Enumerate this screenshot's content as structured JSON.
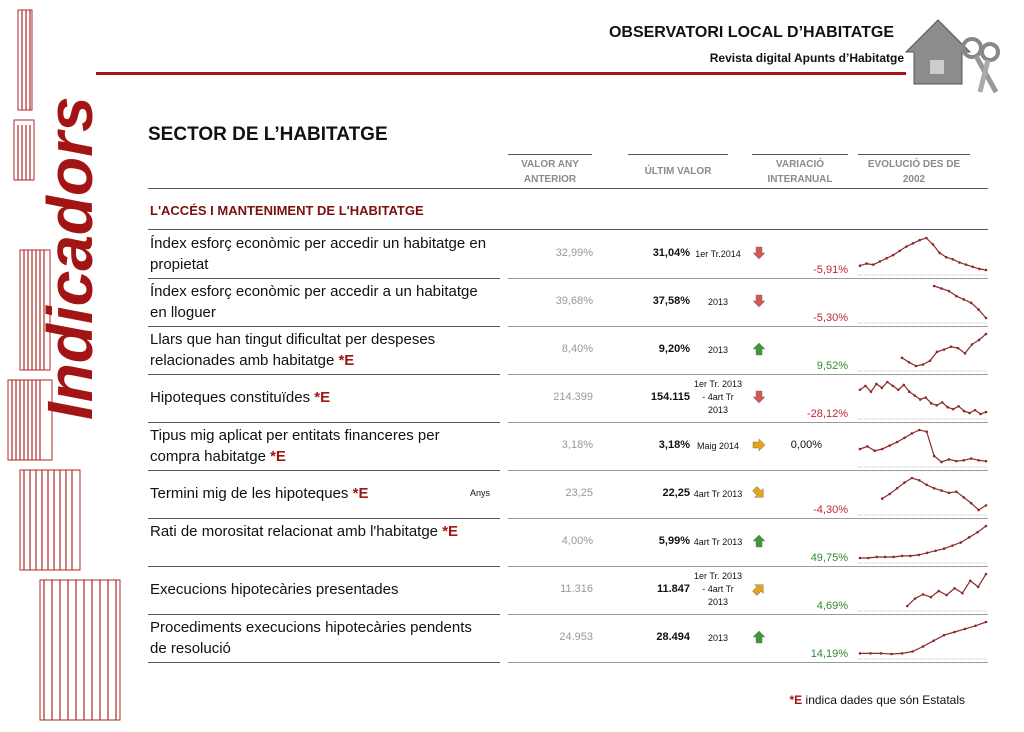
{
  "header": {
    "title": "OBSERVATORI LOCAL D’HABITATGE",
    "subtitle": "Revista digital Apunts d’Habitatge",
    "side_label": "Indicadors"
  },
  "section_title": "SECTOR DE L’HABITATGE",
  "columns": [
    "VALOR ANY ANTERIOR",
    "ÚLTIM VALOR",
    "VARIACIÓ INTERANUAL",
    "EVOLUCIÓ DES DE 2002"
  ],
  "group_title": "L'ACCÉS I MANTENIMENT DE L'HABITATGE",
  "rows": [
    {
      "label": "Índex esforç econòmic per accedir un habitatge en propietat",
      "prior": "32,99%",
      "last": "31,04%",
      "period": "1er Tr.2014",
      "trend": "down",
      "trend_color": "#d9534f",
      "variation": "-5,91%",
      "variation_color": "#c0262c",
      "spark": [
        20,
        22,
        21,
        24,
        27,
        30,
        34,
        38,
        41,
        44,
        46,
        40,
        32,
        28,
        26,
        23,
        21,
        19,
        17,
        16
      ]
    },
    {
      "label": "Índex esforç econòmic per accedir a un habitatge en lloguer",
      "prior": "39,68%",
      "last": "37,58%",
      "period": "2013",
      "trend": "down",
      "trend_color": "#d9534f",
      "variation": "-5,30%",
      "variation_color": "#c0262c",
      "spark": [
        null,
        null,
        null,
        null,
        null,
        null,
        null,
        null,
        null,
        null,
        60,
        57,
        54,
        48,
        44,
        40,
        32,
        22
      ]
    },
    {
      "label": "Llars que han tingut dificultat per despeses relacionades amb habitatge",
      "flag": "*E",
      "prior": "8,40%",
      "last": "9,20%",
      "period": "2013",
      "trend": "up",
      "trend_color": "#3a9a3a",
      "variation": "9,52%",
      "variation_color": "#2e8b2e",
      "spark": [
        null,
        null,
        null,
        null,
        null,
        null,
        20,
        14,
        9,
        11,
        16,
        28,
        31,
        35,
        33,
        26,
        38,
        44,
        52
      ]
    },
    {
      "label": "Hipoteques constituïdes",
      "flag": "*E",
      "prior": "214.399",
      "last": "154.115",
      "period": "1er Tr. 2013 - 4art Tr 2013",
      "trend": "down",
      "trend_color": "#d9534f",
      "variation": "-28,12%",
      "variation_color": "#c0262c",
      "spark": [
        40,
        44,
        38,
        46,
        42,
        48,
        44,
        40,
        45,
        38,
        34,
        30,
        32,
        26,
        24,
        27,
        22,
        20,
        23,
        18,
        16,
        19,
        15,
        17
      ]
    },
    {
      "label": "Tipus mig aplicat per entitats financeres per compra habitatge",
      "flag": "*E",
      "prior": "3,18%",
      "last": "3,18%",
      "period": "Maig  2014",
      "trend": "right",
      "trend_color": "#e8a317",
      "variation": "0,00%",
      "variation_color": "#111111",
      "spark": [
        30,
        33,
        28,
        30,
        34,
        38,
        43,
        48,
        52,
        50,
        22,
        15,
        18,
        16,
        17,
        19,
        17,
        16
      ]
    },
    {
      "label": "Termini mig de les hipoteques",
      "flag": "*E",
      "unit": "Anys",
      "prior": "23,25",
      "last": "22,25",
      "period": "4art Tr 2013",
      "trend": "down-right",
      "trend_color": "#e8a317",
      "variation": "-4,30%",
      "variation_color": "#c0262c",
      "spark": [
        null,
        null,
        null,
        20,
        24,
        29,
        34,
        38,
        36,
        32,
        29,
        27,
        25,
        26,
        21,
        16,
        10,
        14
      ]
    },
    {
      "label": "Rati de morositat relacionat amb l'habitatge",
      "flag": "*E",
      "prior": "4,00%",
      "last": "5,99%",
      "period": "4art Tr 2013",
      "trend": "up",
      "trend_color": "#3a9a3a",
      "variation": "49,75%",
      "variation_color": "#2e8b2e",
      "spark": [
        5,
        5,
        6,
        6,
        6,
        7,
        7,
        8,
        10,
        12,
        14,
        17,
        20,
        25,
        30,
        36
      ]
    },
    {
      "label": "Execucions hipotecàries presentades",
      "prior": "11.316",
      "last": "11.847",
      "period": "1er Tr. 2013 - 4art Tr 2013",
      "trend": "up-right",
      "trend_color": "#e8a317",
      "variation": "4,69%",
      "variation_color": "#2e8b2e",
      "spark": [
        null,
        null,
        null,
        null,
        null,
        null,
        5,
        16,
        22,
        18,
        27,
        21,
        31,
        24,
        42,
        33,
        52
      ]
    },
    {
      "label": "Procediments execucions hipotecàries pendents de resolució",
      "prior": "24.953",
      "last": "28.494",
      "period": "2013",
      "trend": "up",
      "trend_color": "#3a9a3a",
      "variation": "14,19%",
      "variation_color": "#2e8b2e",
      "spark": [
        10,
        10,
        10,
        9,
        10,
        13,
        21,
        30,
        39,
        44,
        49,
        54,
        60
      ]
    }
  ],
  "footnote": {
    "flag": "*E",
    "text": "indica dades que són Estatals"
  }
}
